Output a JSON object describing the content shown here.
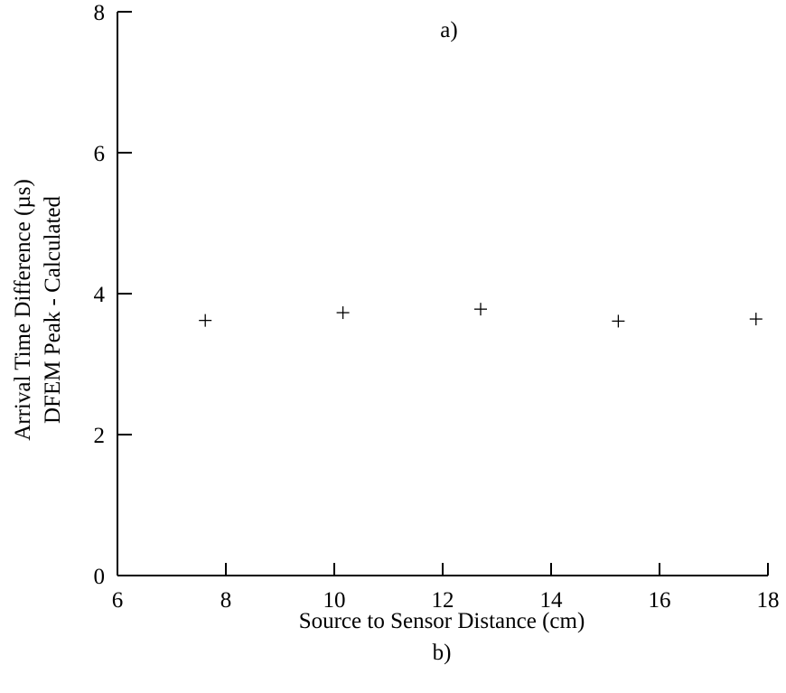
{
  "chart_data": {
    "type": "scatter",
    "title": "",
    "annotation_top": "a)",
    "annotation_bottom": "b)",
    "xlabel": "Source to Sensor Distance (cm)",
    "ylabel_lines": [
      "Arrival Time Difference (µs)",
      "DFEM Peak - Calculated"
    ],
    "xlim": [
      6,
      18
    ],
    "ylim": [
      0,
      8
    ],
    "xticks": [
      6,
      8,
      10,
      12,
      14,
      16,
      18
    ],
    "yticks": [
      0,
      2,
      4,
      6,
      8
    ],
    "grid": false,
    "marker": "plus",
    "series": [
      {
        "x": [
          7.62,
          10.16,
          12.7,
          15.24,
          17.78
        ],
        "y": [
          3.62,
          3.73,
          3.78,
          3.61,
          3.64
        ]
      }
    ]
  }
}
